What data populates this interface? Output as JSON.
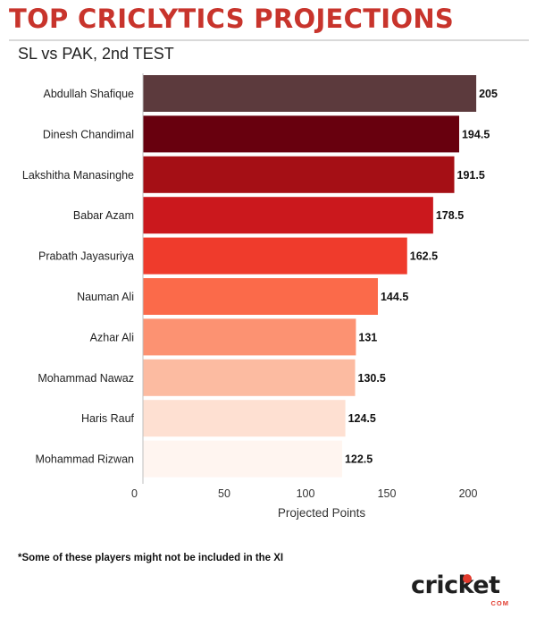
{
  "header": {
    "title": "TOP CRICLYTICS PROJECTIONS",
    "subtitle": "SL vs PAK, 2nd TEST"
  },
  "footnote": "*Some of these players might not be included in the XI",
  "logo": {
    "wordmark": "cricket",
    "sub": "COM"
  },
  "colors": {
    "title": "#c8342c",
    "bars": [
      "#5c3a3d",
      "#68000e",
      "#a50f15",
      "#cb181d",
      "#ef3b2c",
      "#fb6a4a",
      "#fc9272",
      "#fcbba1",
      "#fee0d2",
      "#fff5f0"
    ]
  },
  "chart_data": {
    "type": "bar",
    "orientation": "horizontal",
    "categories": [
      "Abdullah Shafique",
      "Dinesh Chandimal",
      "Lakshitha Manasinghe",
      "Babar Azam",
      "Prabath Jayasuriya",
      "Nauman Ali",
      "Azhar Ali",
      "Mohammad Nawaz",
      "Haris Rauf",
      "Mohammad Rizwan"
    ],
    "values": [
      205,
      194.5,
      191.5,
      178.5,
      162.5,
      144.5,
      131,
      130.5,
      124.5,
      122.5
    ],
    "value_labels": [
      "205",
      "194.5",
      "191.5",
      "178.5",
      "162.5",
      "144.5",
      "131",
      "130.5",
      "124.5",
      "122.5"
    ],
    "xlabel": "Projected Points",
    "xlim": [
      0,
      220
    ],
    "xticks": [
      0,
      50,
      100,
      150,
      200
    ],
    "grid": false,
    "legend": "none"
  }
}
